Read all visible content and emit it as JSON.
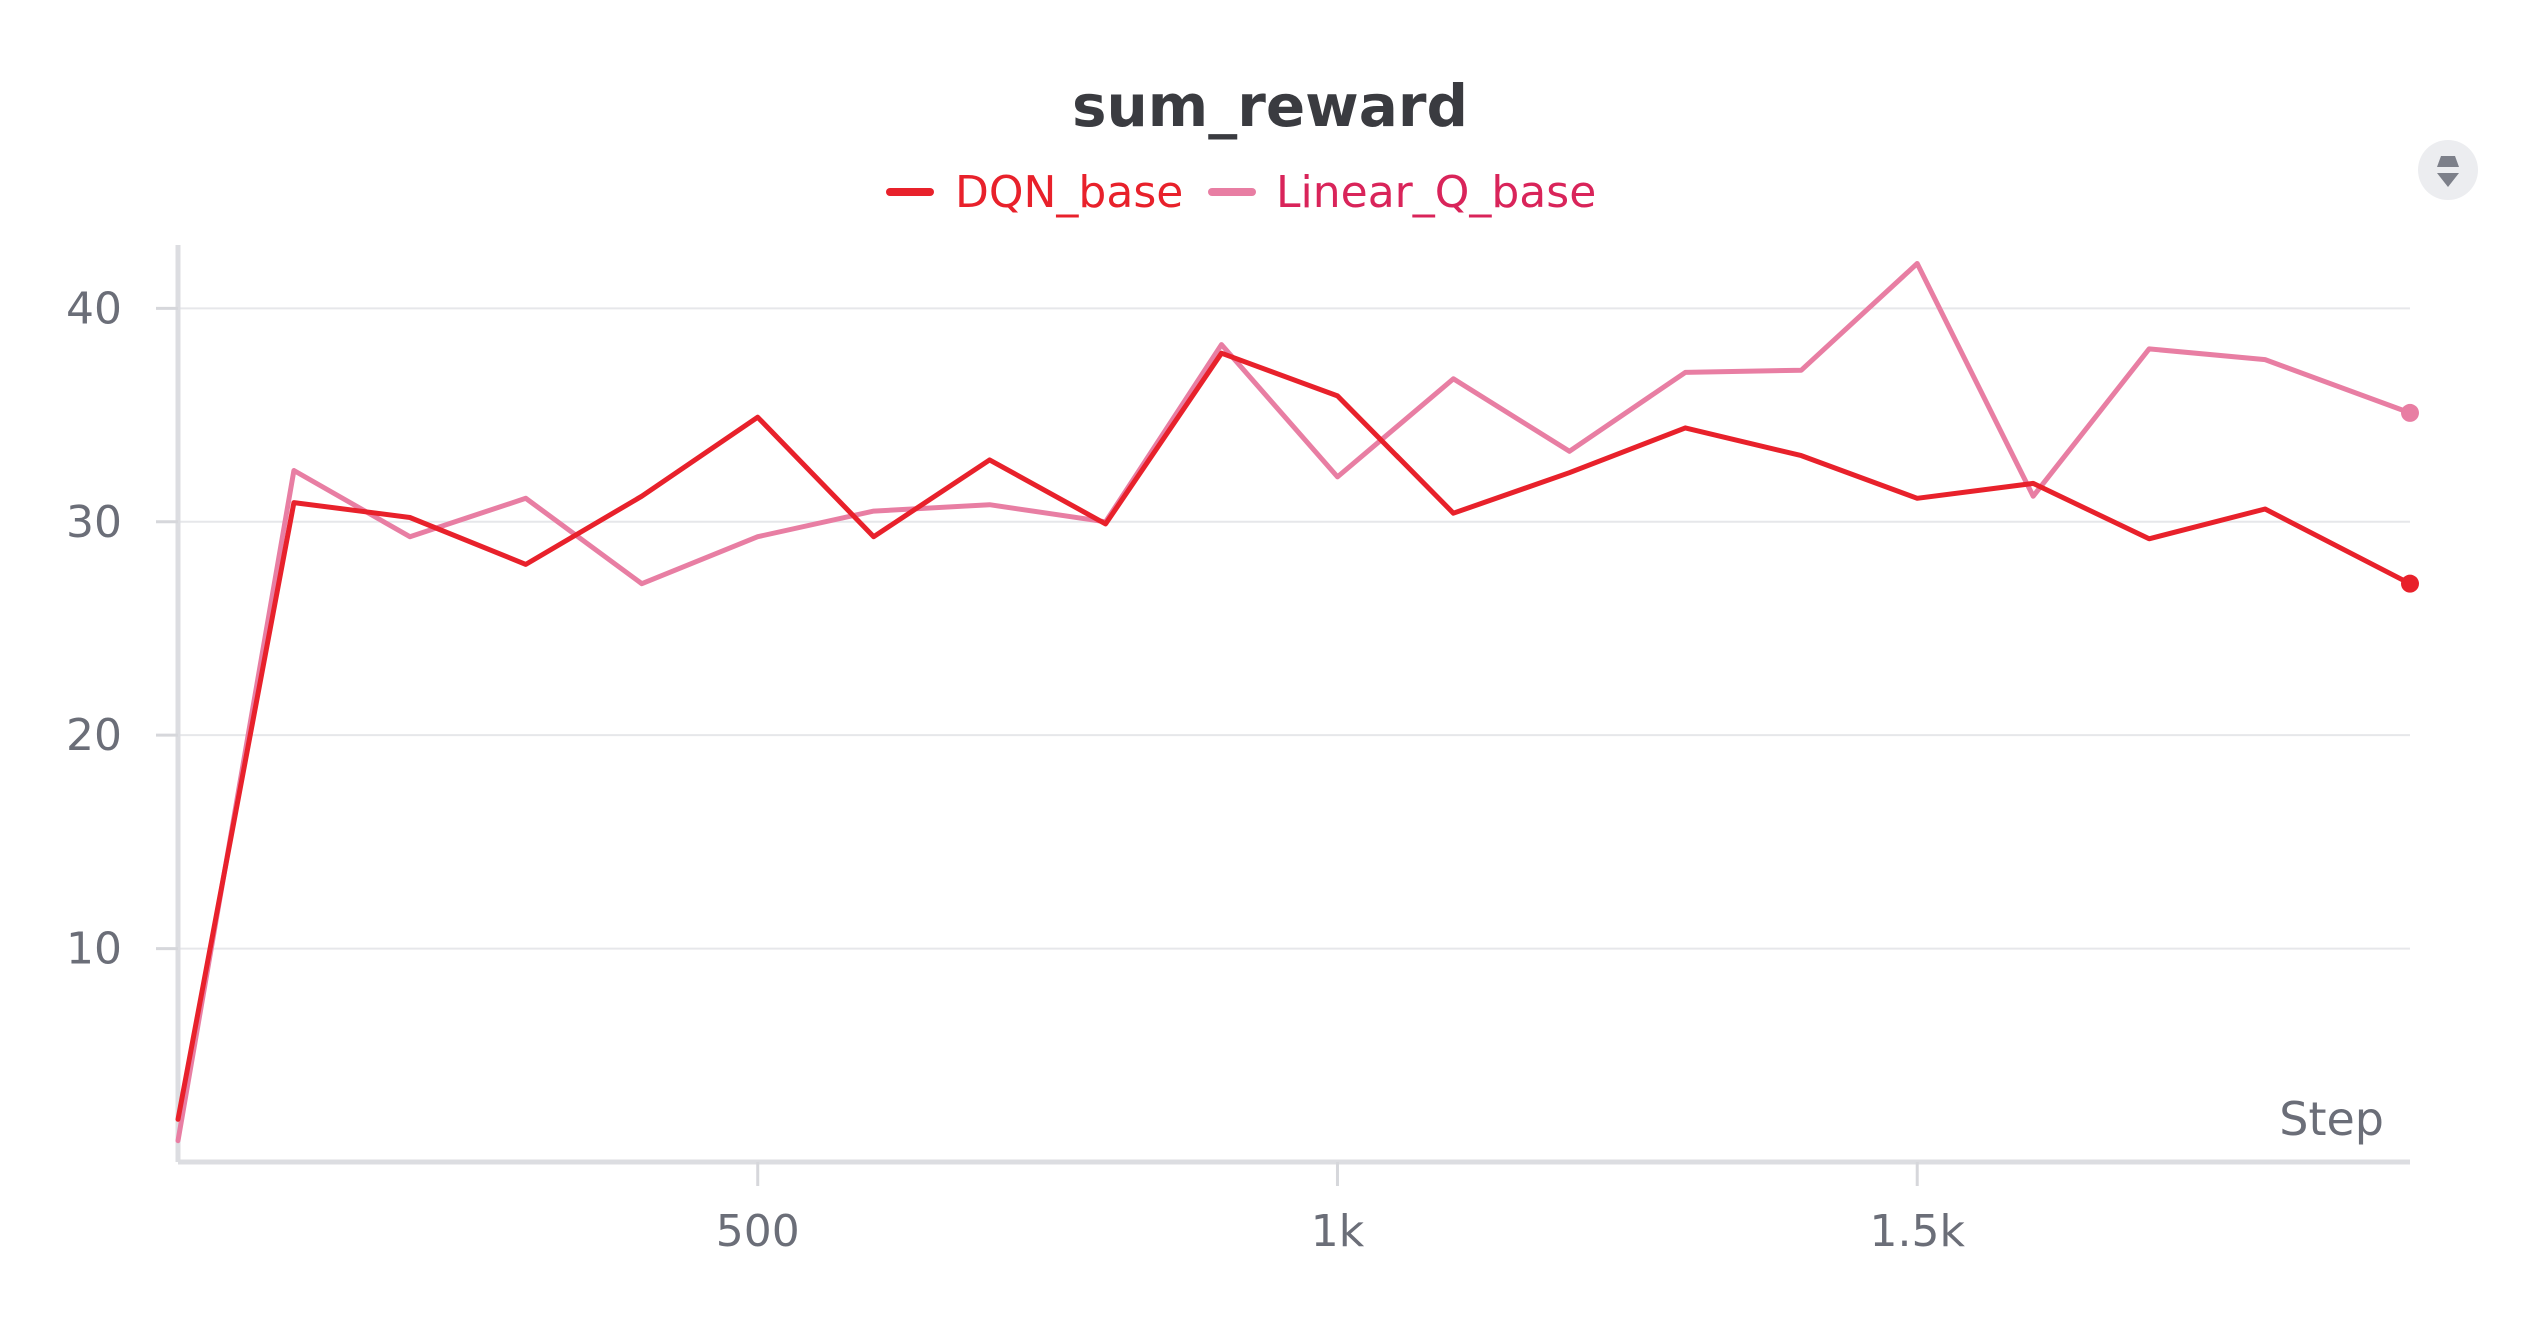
{
  "chart_data": {
    "type": "line",
    "title": "sum_reward",
    "xlabel": "Step",
    "ylabel": "",
    "xlim": [
      0,
      1925
    ],
    "ylim": [
      0,
      42.5
    ],
    "x_ticks": [
      {
        "value": 500,
        "label": "500"
      },
      {
        "value": 1000,
        "label": "1k"
      },
      {
        "value": 1500,
        "label": "1.5k"
      }
    ],
    "y_ticks": [
      {
        "value": 10,
        "label": "10"
      },
      {
        "value": 20,
        "label": "20"
      },
      {
        "value": 30,
        "label": "30"
      },
      {
        "value": 40,
        "label": "40"
      }
    ],
    "grid": true,
    "legend_position": "top-center",
    "series": [
      {
        "name": "DQN_base",
        "color": "#e8212b",
        "x": [
          0,
          100,
          200,
          300,
          400,
          500,
          600,
          700,
          800,
          900,
          1000,
          1100,
          1200,
          1300,
          1400,
          1500,
          1600,
          1700,
          1800,
          1925
        ],
        "y": [
          2,
          30.9,
          30.2,
          28,
          31.2,
          34.9,
          29.3,
          32.9,
          29.9,
          37.9,
          35.9,
          30.4,
          32.3,
          34.4,
          33.1,
          31.1,
          31.8,
          29.2,
          30.6,
          27.1
        ]
      },
      {
        "name": "Linear_Q_base",
        "color": "#e87ea3",
        "x": [
          0,
          100,
          200,
          300,
          400,
          500,
          600,
          700,
          800,
          900,
          1000,
          1100,
          1200,
          1300,
          1400,
          1500,
          1600,
          1700,
          1800,
          1925
        ],
        "y": [
          1,
          32.4,
          29.3,
          31.1,
          27.1,
          29.3,
          30.5,
          30.8,
          30,
          38.3,
          32.1,
          36.7,
          33.3,
          37,
          37.1,
          42.1,
          31.2,
          38.1,
          37.6,
          35.1
        ]
      }
    ]
  },
  "controls": {
    "panel_menu_icon": "drag-handle-icon"
  }
}
